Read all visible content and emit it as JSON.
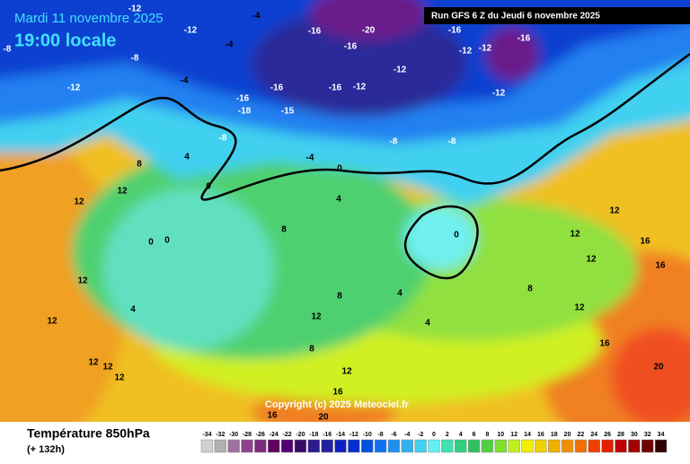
{
  "header": {
    "date": "Mardi 11 novembre 2025",
    "time": "19:00 locale",
    "run": "Run GFS 6 Z du Jeudi 6 novembre 2025"
  },
  "map": {
    "copyright": "Copyright (c) 2025 Meteociel.fr",
    "contour_labels": [
      -12,
      -12,
      -4,
      -8,
      -4,
      -8,
      -12,
      -4,
      -16,
      -20,
      -16,
      -12,
      -16,
      -16,
      -12,
      -16,
      -18,
      -15,
      -8,
      -16,
      -12,
      -12,
      -16,
      -12,
      -8,
      -8,
      -4,
      0,
      0,
      8,
      12,
      12,
      4,
      0,
      0,
      8,
      0,
      12,
      4,
      12,
      12,
      8,
      4,
      4,
      8,
      12,
      12,
      16,
      12,
      16,
      12,
      16,
      20,
      12,
      16,
      12,
      12,
      12,
      16,
      20,
      8,
      4
    ]
  },
  "legend": {
    "title": "Température 850hPa",
    "lead": "(+ 132h)",
    "ticks": [
      -34,
      -32,
      -30,
      -28,
      -26,
      -24,
      -22,
      -20,
      -18,
      -16,
      -14,
      -12,
      -10,
      -8,
      -6,
      -4,
      -2,
      0,
      2,
      4,
      6,
      8,
      10,
      12,
      14,
      16,
      18,
      20,
      22,
      24,
      26,
      28,
      30,
      32,
      34
    ],
    "colors": [
      "#d0d0d0",
      "#b0b0b0",
      "#a070a0",
      "#904090",
      "#7a2a7a",
      "#600060",
      "#500070",
      "#3a0a6a",
      "#2a1a8a",
      "#2020a0",
      "#1020c0",
      "#0030d0",
      "#0050e0",
      "#1070f0",
      "#2090f0",
      "#30b0f0",
      "#40d0f0",
      "#60f0f0",
      "#40e0b0",
      "#30d080",
      "#30c060",
      "#50d040",
      "#80e030",
      "#c0f020",
      "#f0f000",
      "#f0d000",
      "#f0b000",
      "#f09000",
      "#f07000",
      "#f04000",
      "#e02000",
      "#c00000",
      "#a00000",
      "#700000",
      "#300000"
    ]
  }
}
